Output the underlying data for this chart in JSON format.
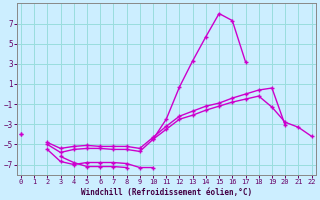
{
  "xlabel": "Windchill (Refroidissement éolien,°C)",
  "background_color": "#cceeff",
  "line_color": "#cc00cc",
  "grid_color": "#99dddd",
  "x": [
    0,
    1,
    2,
    3,
    4,
    5,
    6,
    7,
    8,
    9,
    10,
    11,
    12,
    13,
    14,
    15,
    16,
    17,
    18,
    19,
    20,
    21,
    22
  ],
  "line_spike": [
    null,
    null,
    null,
    null,
    null,
    null,
    null,
    null,
    null,
    null,
    -4.5,
    -2.5,
    0.7,
    3.3,
    5.7,
    8.0,
    7.3,
    3.2,
    null,
    null,
    null,
    null,
    null
  ],
  "line_mid": [
    -4.0,
    null,
    -5.0,
    -5.8,
    -5.5,
    -5.4,
    -5.4,
    -5.5,
    -5.5,
    -5.7,
    -4.5,
    -3.5,
    -2.5,
    -2.1,
    -1.6,
    -1.2,
    -0.8,
    -0.5,
    -0.2,
    -1.3,
    -2.8,
    -3.3,
    -4.2
  ],
  "line_upper": [
    -4.0,
    null,
    -4.8,
    -5.4,
    -5.2,
    -5.1,
    -5.2,
    -5.2,
    -5.2,
    -5.4,
    -4.3,
    -3.2,
    -2.2,
    -1.7,
    -1.2,
    -0.9,
    -0.4,
    0.0,
    0.4,
    0.6,
    -3.1,
    null,
    null
  ],
  "line_low1": [
    null,
    null,
    -5.5,
    -6.7,
    -7.0,
    -6.8,
    -6.8,
    -6.8,
    -6.9,
    -7.3,
    -7.3,
    null,
    null,
    null,
    null,
    null,
    null,
    null,
    null,
    null,
    null,
    null,
    null
  ],
  "line_low2": [
    null,
    null,
    null,
    -6.2,
    -6.8,
    -7.2,
    -7.2,
    -7.2,
    -7.3,
    null,
    null,
    null,
    null,
    null,
    null,
    null,
    null,
    null,
    null,
    null,
    null,
    null,
    null
  ],
  "ylim": [
    -8,
    9
  ],
  "xlim": [
    -0.3,
    22.3
  ],
  "yticks": [
    -7,
    -5,
    -3,
    -1,
    1,
    3,
    5,
    7
  ],
  "xticks": [
    0,
    1,
    2,
    3,
    4,
    5,
    6,
    7,
    8,
    9,
    10,
    11,
    12,
    13,
    14,
    15,
    16,
    17,
    18,
    19,
    20,
    21,
    22
  ]
}
